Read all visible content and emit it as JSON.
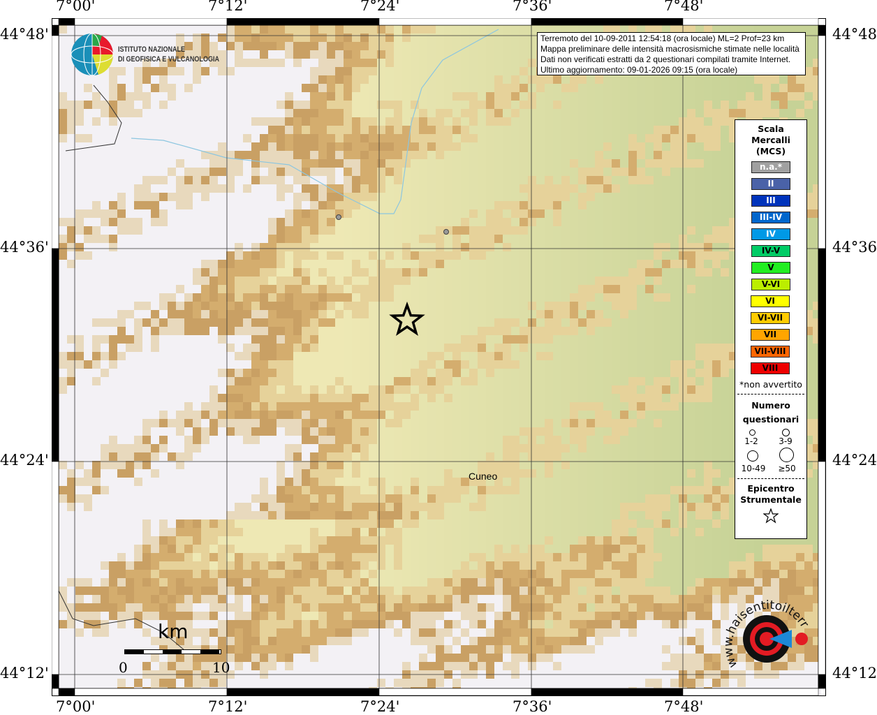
{
  "map": {
    "longitude_labels": [
      "7°00'",
      "7°12'",
      "7°24'",
      "7°36'",
      "7°48'"
    ],
    "latitude_labels": [
      "44°48'",
      "44°36'",
      "44°24'",
      "44°12'"
    ],
    "place_label": "Cuneo",
    "scale_bar": {
      "unit": "km",
      "start": "0",
      "end": "10"
    },
    "epicenter_icon": "star-icon"
  },
  "info_box": {
    "line1": "Terremoto del 10-09-2011 12:54:18 (ora locale) ML=2 Prof=23 km",
    "line2": "Mappa preliminare delle intensità macrosismiche stimate nelle località",
    "line3": "Dati non verificati estratti da 2 questionari compilati tramite Internet.",
    "line4": "Ultimo aggiornamento: 09-01-2026 09:15 (ora locale)"
  },
  "logo_ingv": {
    "line1": "ISTITUTO NAZIONALE",
    "line2": "DI GEOFISICA E VULCANOLOGIA"
  },
  "logo_hsit": {
    "text": "www.haisentitoilterremoto.it"
  },
  "legend": {
    "title_lines": [
      "Scala",
      "Mercalli",
      "(MCS)"
    ],
    "scale": [
      {
        "label": "n.a.*",
        "color": "#a0a0a0",
        "text_color": "#ffffff"
      },
      {
        "label": "II",
        "color": "#4a62a8",
        "text_color": "#ffffff"
      },
      {
        "label": "III",
        "color": "#0033bb",
        "text_color": "#ffffff"
      },
      {
        "label": "III-IV",
        "color": "#0066cc",
        "text_color": "#ffffff"
      },
      {
        "label": "IV",
        "color": "#0099e6",
        "text_color": "#ffffff"
      },
      {
        "label": "IV-V",
        "color": "#00cc66",
        "text_color": "#000000"
      },
      {
        "label": "V",
        "color": "#22ee22",
        "text_color": "#000000"
      },
      {
        "label": "V-VI",
        "color": "#bbee00",
        "text_color": "#000000"
      },
      {
        "label": "VI",
        "color": "#ffff00",
        "text_color": "#000000"
      },
      {
        "label": "VI-VII",
        "color": "#ffcc00",
        "text_color": "#000000"
      },
      {
        "label": "VII",
        "color": "#ffa500",
        "text_color": "#000000"
      },
      {
        "label": "VII-VIII",
        "color": "#ff6600",
        "text_color": "#000000"
      },
      {
        "label": "VIII",
        "color": "#ee0000",
        "text_color": "#000000"
      }
    ],
    "footnote": "*non avvertito",
    "questionnaires_title": [
      "Numero",
      "questionari"
    ],
    "sizes": [
      "1-2",
      "3-9",
      "10-49",
      "≥50"
    ],
    "epicenter_title": [
      "Epicentro",
      "Strumentale"
    ]
  }
}
